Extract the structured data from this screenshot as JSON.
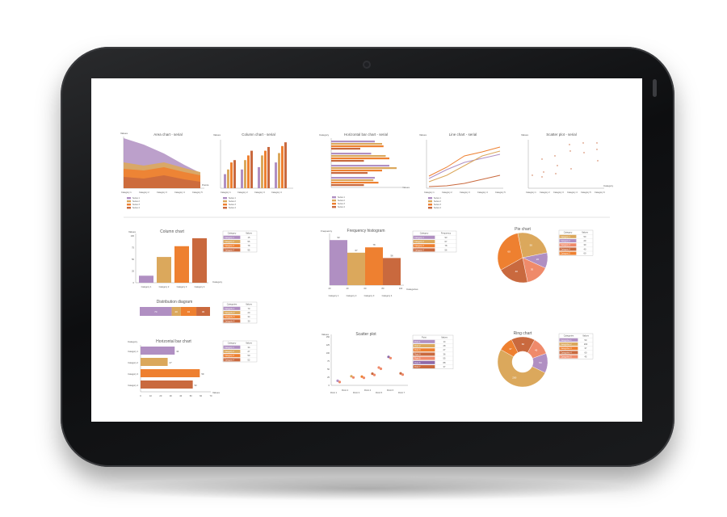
{
  "colors": {
    "purple": "#b08fc2",
    "gold": "#dba85c",
    "orange": "#ee8030",
    "rust": "#c9693e",
    "salmon": "#ef8a6a",
    "violet": "#8f6aa8"
  },
  "small_charts": {
    "area": {
      "title": "Area chart - serial",
      "ylabel": "Values",
      "xlabel": "Points",
      "categories": [
        "Category 1",
        "Category 2",
        "Category 3",
        "Category 4",
        "Category 5"
      ],
      "legend": [
        "Series 1",
        "Series 2",
        "Series 3",
        "Series 4"
      ]
    },
    "column": {
      "title": "Column chart - serial",
      "ylabel": "Values",
      "xlabel": "",
      "categories": [
        "Category 1",
        "Category 2",
        "Category 3",
        "Category 4"
      ],
      "legend": [
        "Series 1",
        "Series 2",
        "Series 3",
        "Series 4"
      ]
    },
    "hbar": {
      "title": "Horizontal bar chart - serial",
      "ylabel": "Category",
      "xlabel": "Values",
      "categories": [
        "Category 1",
        "Category 2",
        "Category 3",
        "Category 4"
      ],
      "legend": [
        "Series 1",
        "Series 2",
        "Series 3",
        "Series 4"
      ]
    },
    "line": {
      "title": "Line chart - serial",
      "ylabel": "Values",
      "xlabel": "",
      "categories": [
        "Category 1",
        "Category 2",
        "Category 3",
        "Category 4",
        "Category 5"
      ],
      "legend": [
        "Series 1",
        "Series 2",
        "Series 3",
        "Series 4"
      ]
    },
    "scatter": {
      "title": "Scatter plot - serial",
      "ylabel": "Values",
      "xlabel": "Category",
      "categories": [
        "Category 1",
        "Category 2",
        "Category 3",
        "Category 4",
        "Category 5",
        "Category 6"
      ]
    }
  },
  "chart_data": [
    {
      "type": "bar",
      "title": "Column chart",
      "ylabel": "Values",
      "xlabel": "Category",
      "categories": [
        "Category 1",
        "Category 2",
        "Category 3",
        "Category 4"
      ],
      "values": [
        15,
        55,
        78,
        95
      ],
      "ylim": [
        0,
        100
      ],
      "table": {
        "header": [
          "Category",
          "Values"
        ],
        "rows": [
          [
            "Category 1",
            "15"
          ],
          [
            "Category 2",
            "55"
          ],
          [
            "Category 3",
            "78"
          ],
          [
            "Category 4",
            "95"
          ]
        ]
      }
    },
    {
      "type": "bar",
      "title": "Distribution diagram",
      "values": [
        70,
        20,
        34,
        30
      ],
      "labels": [
        "70",
        "20",
        "34",
        "30"
      ],
      "table": {
        "header": [
          "Categories",
          "Values"
        ],
        "rows": [
          [
            "Categorie 1",
            "70"
          ],
          [
            "Categorie 2",
            "20"
          ],
          [
            "Categorie 3",
            "34"
          ],
          [
            "Categorie 4",
            "30"
          ]
        ]
      }
    },
    {
      "type": "bar",
      "title": "Frequency histogram",
      "ylabel": "Frequency",
      "xlabel": "Categories",
      "categories": [
        "Category 1",
        "Category 2",
        "Category 3",
        "Category 4"
      ],
      "values": [
        93,
        67,
        78,
        56
      ],
      "xticks": [
        "20",
        "40",
        "60",
        "80",
        "100"
      ],
      "table": {
        "header": [
          "Category",
          "Frequency"
        ],
        "rows": [
          [
            "Category 1",
            "93"
          ],
          [
            "Category 2",
            "67"
          ],
          [
            "Category 3",
            "78"
          ],
          [
            "Category 4",
            "56"
          ]
        ]
      }
    },
    {
      "type": "pie",
      "title": "Pie chart",
      "values": [
        50,
        20,
        30,
        40,
        60
      ],
      "labels": [
        "50",
        "20",
        "30",
        "40",
        "60"
      ],
      "table": {
        "header": [
          "Category",
          "Values"
        ],
        "rows": [
          [
            "Category 1",
            "50"
          ],
          [
            "Category 2",
            "20"
          ],
          [
            "Category 3",
            "30"
          ],
          [
            "Category 4",
            "40"
          ],
          [
            "Category 5",
            "60"
          ]
        ]
      }
    },
    {
      "type": "bar",
      "title": "Horizontal bar chart",
      "ylabel": "Category",
      "xlabel": "Values",
      "categories": [
        "Category 1",
        "Category 2",
        "Category 3",
        "Category 4"
      ],
      "values": [
        34,
        27,
        59,
        52
      ],
      "xlim": [
        0,
        70
      ],
      "xticks": [
        "0",
        "10",
        "20",
        "30",
        "40",
        "50",
        "60",
        "70"
      ],
      "table": {
        "header": [
          "Category",
          "Values"
        ],
        "rows": [
          [
            "Category 1",
            "34"
          ],
          [
            "Category 2",
            "27"
          ],
          [
            "Category 3",
            "59"
          ],
          [
            "Category 4",
            "52"
          ]
        ]
      }
    },
    {
      "type": "scatter",
      "title": "Scatter plot",
      "ylabel": "Values",
      "categories": [
        "Point 1",
        "Point 2",
        "Point 3",
        "Point 4",
        "Point 5",
        "Point 6",
        "Point 7"
      ],
      "values": [
        14,
        28,
        27,
        36,
        55,
        88,
        37
      ],
      "yticks": [
        "0",
        "25",
        "50",
        "75",
        "100",
        "125",
        "150"
      ],
      "table": {
        "header": [
          "Point",
          "Values"
        ],
        "rows": [
          [
            "Point 1",
            "14"
          ],
          [
            "Point 2",
            "28"
          ],
          [
            "Point 3",
            "27"
          ],
          [
            "Point 4",
            "36"
          ],
          [
            "Point 5",
            "55"
          ],
          [
            "Point 6",
            "88"
          ],
          [
            "Point 7",
            "37"
          ]
        ]
      }
    },
    {
      "type": "pie",
      "title": "Ring chart",
      "values": [
        50,
        200,
        37,
        60,
        45
      ],
      "labels": [
        "50",
        "200",
        "37",
        "60",
        "45"
      ],
      "table": {
        "header": [
          "Categories",
          "Values"
        ],
        "rows": [
          [
            "Categories 1",
            "50"
          ],
          [
            "Categories 2",
            "200"
          ],
          [
            "Categories 3",
            "37"
          ],
          [
            "Categories 4",
            "60"
          ],
          [
            "Categories 5",
            "45"
          ]
        ]
      }
    }
  ]
}
